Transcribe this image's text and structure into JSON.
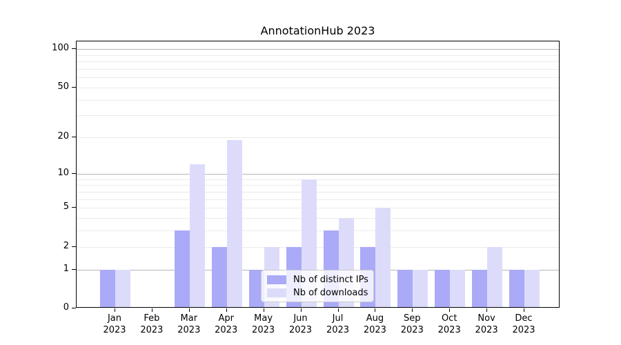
{
  "chart_data": {
    "type": "bar",
    "title": "AnnotationHub 2023",
    "y_scale": "log1p",
    "ylim": [
      0,
      115
    ],
    "y_ticks": [
      100,
      50,
      20,
      10,
      5,
      2,
      1,
      0
    ],
    "grid": {
      "major": [
        1,
        10,
        100
      ],
      "minor": [
        2,
        3,
        4,
        5,
        6,
        7,
        8,
        9,
        20,
        30,
        40,
        50,
        60,
        70,
        80,
        90
      ]
    },
    "categories": [
      {
        "month": "Jan",
        "year": "2023"
      },
      {
        "month": "Feb",
        "year": "2023"
      },
      {
        "month": "Mar",
        "year": "2023"
      },
      {
        "month": "Apr",
        "year": "2023"
      },
      {
        "month": "May",
        "year": "2023"
      },
      {
        "month": "Jun",
        "year": "2023"
      },
      {
        "month": "Jul",
        "year": "2023"
      },
      {
        "month": "Aug",
        "year": "2023"
      },
      {
        "month": "Sep",
        "year": "2023"
      },
      {
        "month": "Oct",
        "year": "2023"
      },
      {
        "month": "Nov",
        "year": "2023"
      },
      {
        "month": "Dec",
        "year": "2023"
      }
    ],
    "series": [
      {
        "name": "Nb of distinct IPs",
        "color": "#aaaaf8",
        "values": [
          1,
          0,
          3,
          2,
          1,
          2,
          3,
          2,
          1,
          1,
          1,
          1
        ]
      },
      {
        "name": "Nb of downloads",
        "color": "#dcdcfa",
        "values": [
          1,
          0,
          12,
          19,
          2,
          9,
          4,
          5,
          1,
          1,
          2,
          1
        ]
      }
    ],
    "legend_position": "lower center"
  }
}
